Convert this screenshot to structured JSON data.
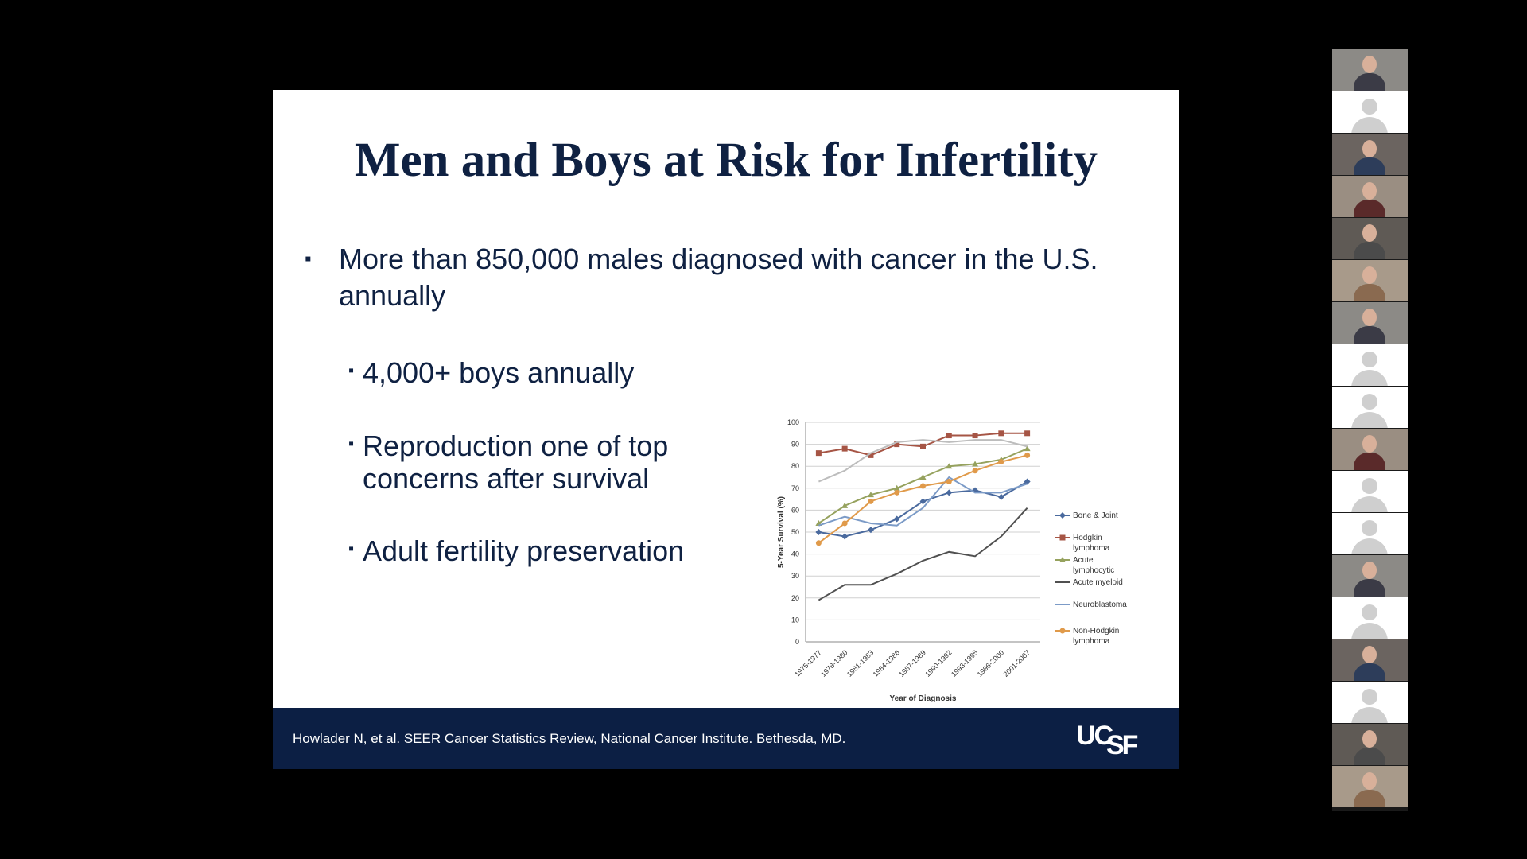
{
  "slide": {
    "title": "Men and Boys at Risk for Infertility",
    "bullet_mark": "▪",
    "main_bullet": "More than 850,000 males diagnosed with cancer in the U.S. annually",
    "sub_bullets": [
      "4,000+ boys annually",
      "Reproduction one of top concerns after survival",
      "Adult fertility preservation"
    ],
    "footer_citation": "Howlader N, et al. SEER Cancer Statistics Review, National Cancer Institute. Bethesda, MD.",
    "logo": "UCSF"
  },
  "chart_data": {
    "type": "line",
    "categories": [
      "1975-1977",
      "1978-1980",
      "1981-1983",
      "1984-1986",
      "1987-1989",
      "1990-1992",
      "1993-1995",
      "1996-2000",
      "2001-2007"
    ],
    "xlabel": "Year of Diagnosis",
    "ylabel": "5-Year Survival (%)",
    "ylim": [
      0,
      100
    ],
    "yticks": [
      "0",
      "10",
      "20",
      "30",
      "40",
      "50",
      "60",
      "70",
      "80",
      "90",
      "100"
    ],
    "grid": "horizontal",
    "legend_position": "right",
    "series": [
      {
        "name": "Bone & Joint",
        "color": "#4a6a9e",
        "marker": "diamond",
        "values": [
          50,
          48,
          51,
          56,
          64,
          68,
          69,
          66,
          73
        ]
      },
      {
        "name": "Hodgkin lymphoma",
        "color": "#a65545",
        "marker": "square",
        "values": [
          86,
          88,
          85,
          90,
          89,
          94,
          94,
          95,
          95
        ]
      },
      {
        "name": "Acute lymphocytic",
        "color": "#96a25e",
        "marker": "triangle",
        "values": [
          54,
          62,
          67,
          70,
          75,
          80,
          81,
          83,
          88
        ]
      },
      {
        "name": "Acute myeloid",
        "color": "#505050",
        "marker": "none",
        "values": [
          19,
          26,
          26,
          31,
          37,
          41,
          39,
          48,
          61
        ]
      },
      {
        "name": "Neuroblastoma",
        "color": "#7c9bc7",
        "marker": "none",
        "values": [
          53,
          57,
          54,
          53,
          61,
          75,
          68,
          68,
          72
        ]
      },
      {
        "name": "Non-Hodgkin lymphoma",
        "color": "#e09a4a",
        "marker": "circle",
        "values": [
          45,
          54,
          64,
          68,
          71,
          73,
          78,
          82,
          85
        ]
      },
      {
        "name": "",
        "color": "#bdbdbd",
        "marker": "none",
        "values": [
          73,
          78,
          86,
          91,
          92,
          91,
          92,
          92,
          89
        ]
      }
    ]
  },
  "participants": {
    "tiles": [
      "video",
      "placeholder",
      "video",
      "video",
      "video",
      "video",
      "video",
      "placeholder",
      "placeholder",
      "video",
      "placeholder",
      "placeholder",
      "video",
      "placeholder",
      "video",
      "placeholder",
      "video",
      "video"
    ]
  }
}
